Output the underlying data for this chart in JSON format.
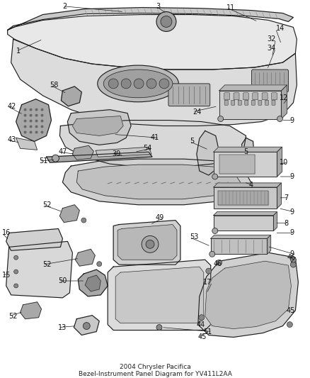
{
  "title": "2004 Chrysler Pacifica",
  "subtitle": "Bezel-Instrument Panel Diagram for YV411L2AA",
  "bg": "#ffffff",
  "fg": "#1a1a1a",
  "gray1": "#c8c8c8",
  "gray2": "#a8a8a8",
  "gray3": "#888888",
  "gray4": "#686868",
  "lw_thick": 1.2,
  "lw_med": 0.8,
  "lw_thin": 0.5,
  "fs_label": 7.0,
  "fs_title": 6.5,
  "fig_w": 4.38,
  "fig_h": 5.33,
  "dpi": 100
}
